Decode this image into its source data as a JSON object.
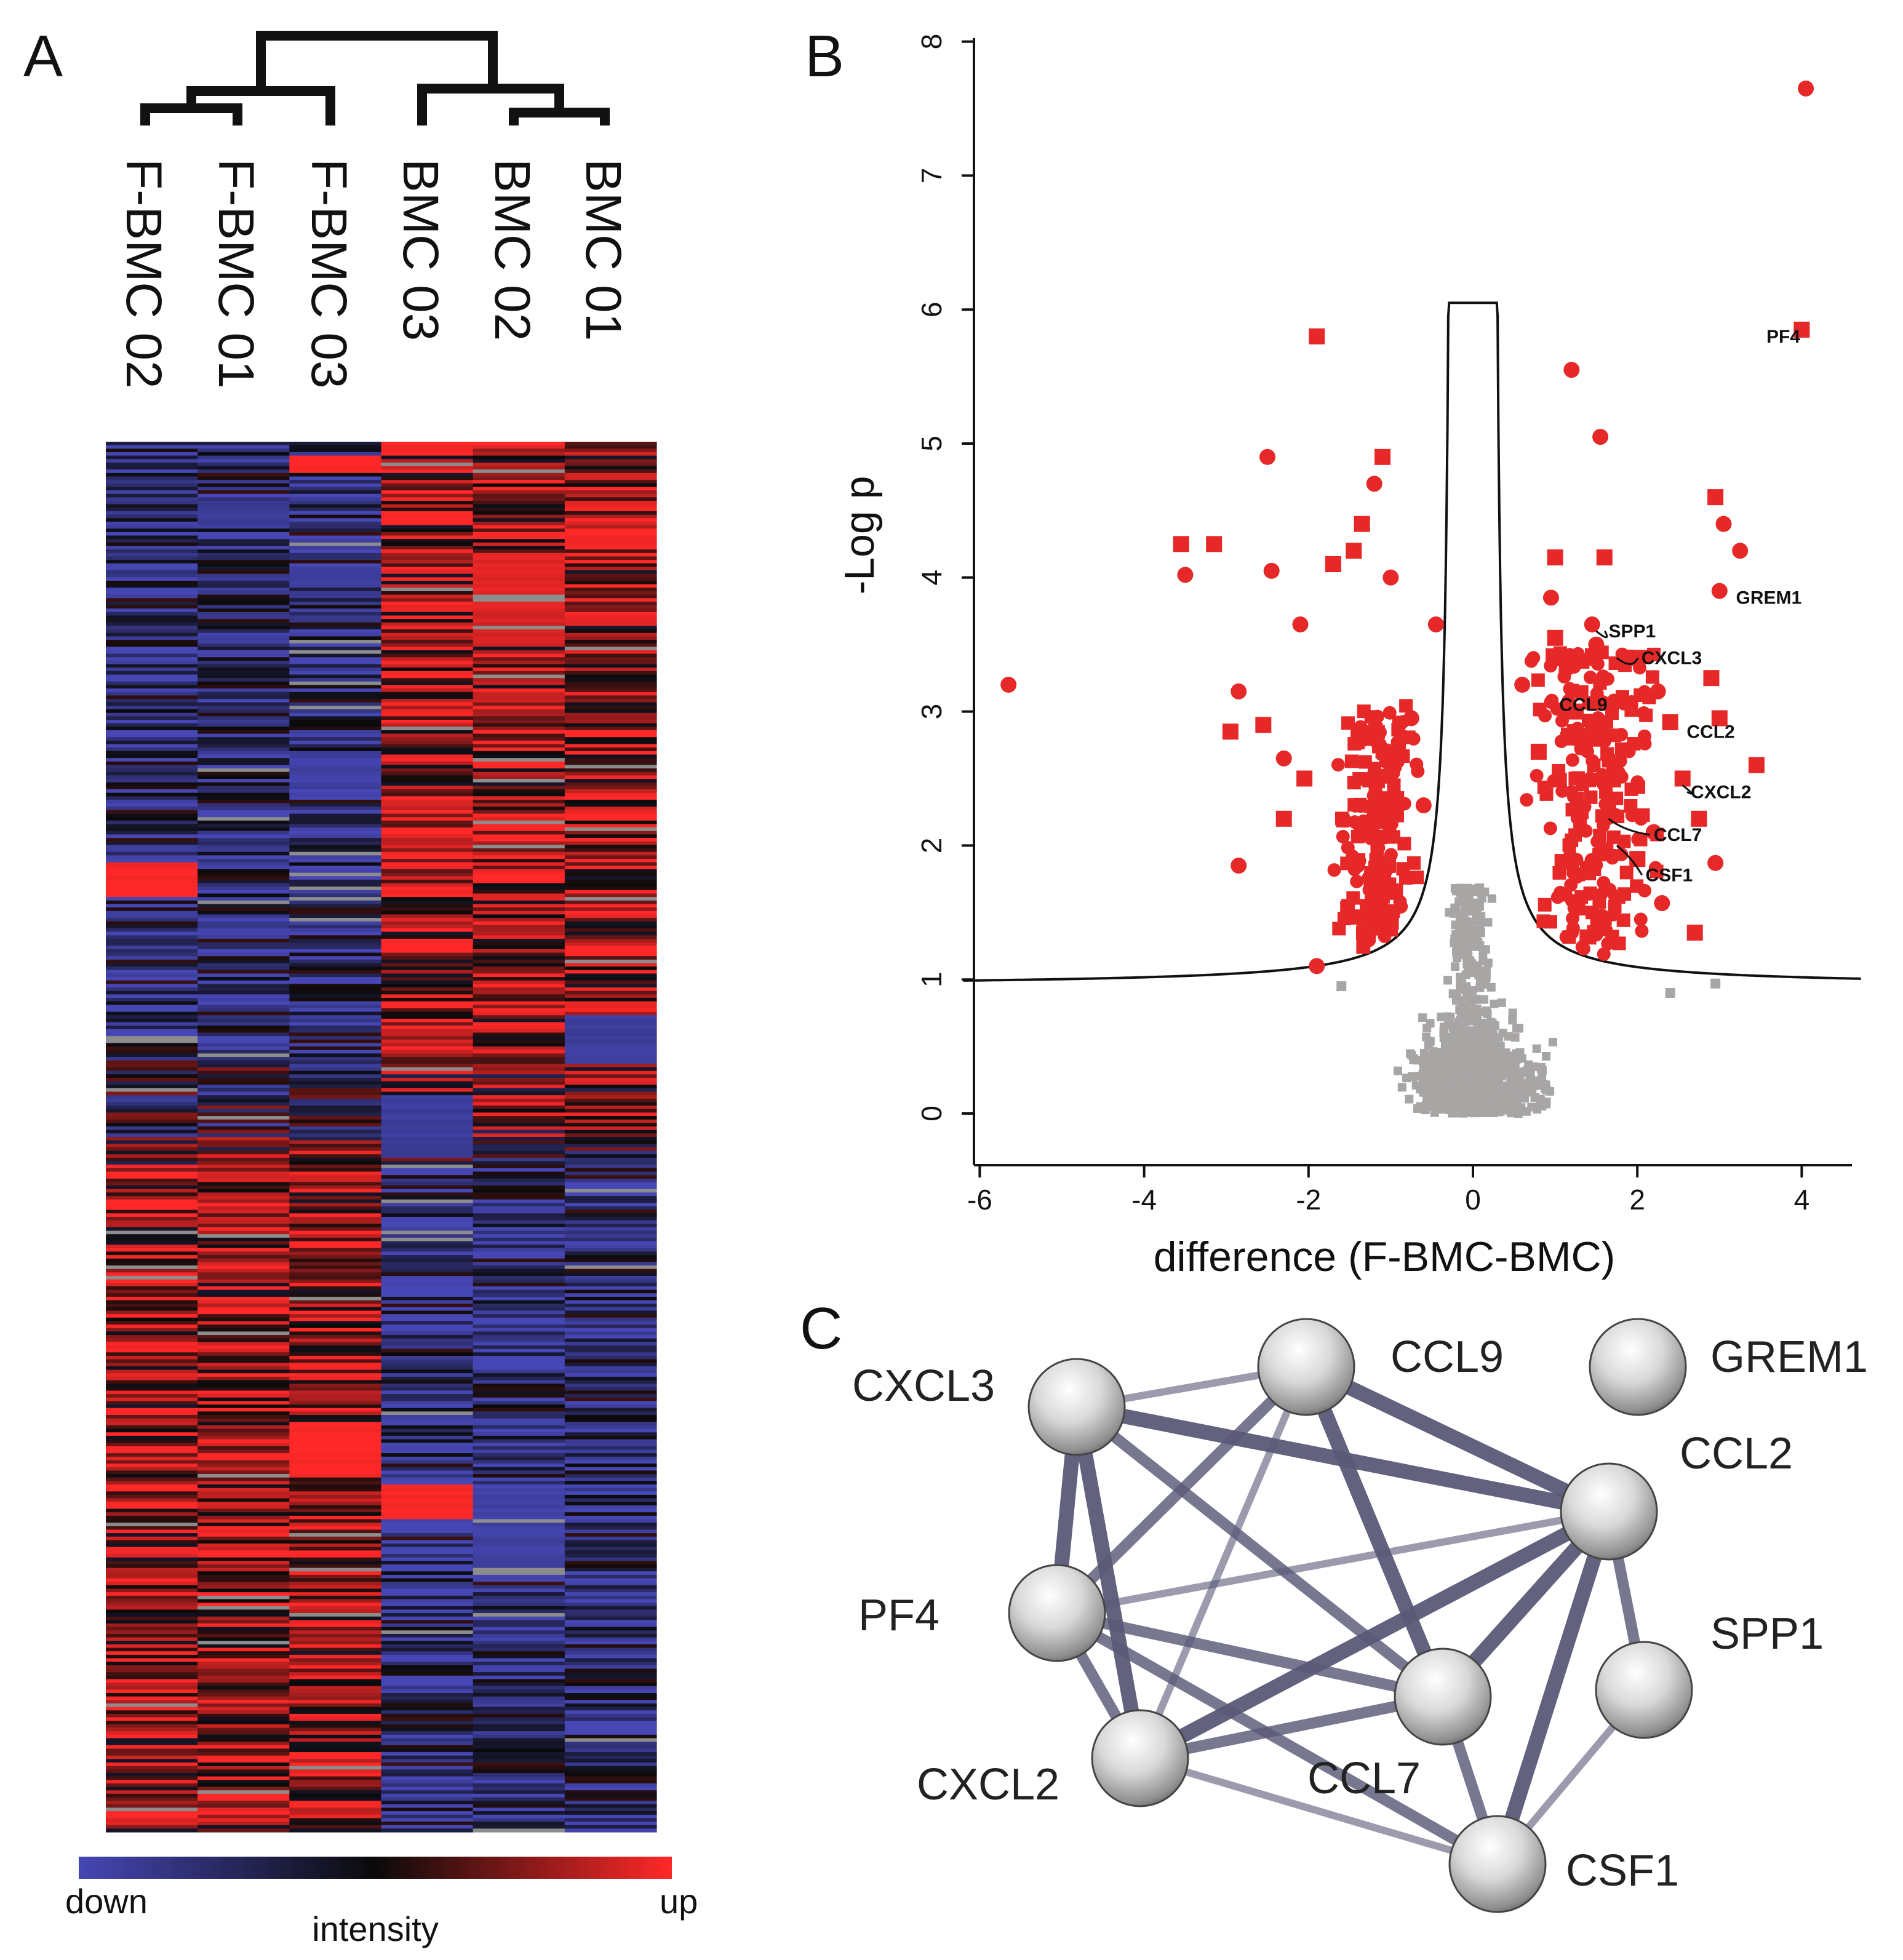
{
  "colors": {
    "down": "#4646b4",
    "mid": "#0a0a0a",
    "up": "#ff2828",
    "significant": "#e62828",
    "nonsignificant": "#a8a5a5",
    "edge": "#5a5a78",
    "node": "#cfcfcf"
  },
  "panels": {
    "a_label": "A",
    "b_label": "B",
    "c_label": "C"
  },
  "heatmap": {
    "samples": [
      "F-BMC 02",
      "F-BMC 01",
      "F-BMC 03",
      "BMC 03",
      "BMC 02",
      "BMC 01"
    ],
    "dendrogram": "F-BMC 02 and F-BMC 01 join first, then F-BMC 03; BMC 02 and BMC 01 join first, then BMC 03; the two groups join at the top",
    "colorbar": {
      "low_label": "down",
      "mid_label": "intensity",
      "high_label": "up"
    }
  },
  "chart_data": [
    {
      "type": "heatmap",
      "title": "",
      "columns": [
        "F-BMC 02",
        "F-BMC 01",
        "F-BMC 03",
        "BMC 03",
        "BMC 02",
        "BMC 01"
      ],
      "row_count": 400,
      "value_range": [
        -1,
        1
      ],
      "pattern": "upper half: F-BMC samples mostly down (blue), BMC samples mostly up (red); lower half: F-BMC samples mostly up (red), BMC samples mostly down (blue)",
      "colorbar": [
        "down",
        "intensity",
        "up"
      ]
    },
    {
      "type": "scatter",
      "title": "",
      "xlabel": "difference (F-BMC-BMC)",
      "ylabel": "-Log p",
      "xlim": [
        -6.2,
        4.7
      ],
      "ylim": [
        -0.4,
        8.1
      ],
      "xticks": [
        -6,
        -4,
        -2,
        0,
        2,
        4
      ],
      "xtick_labels": [
        "-6",
        "-4",
        "-2",
        "0",
        "2",
        "4"
      ],
      "yticks": [
        0,
        1,
        2,
        3,
        4,
        5,
        6,
        7,
        8
      ],
      "ytick_labels": [
        "0",
        "1",
        "2",
        "3",
        "4",
        "5",
        "6",
        "7",
        "8"
      ],
      "significant_points": [
        {
          "x": 4.05,
          "y": 7.65
        },
        {
          "x": 4.0,
          "y": 5.85
        },
        {
          "x": 3.0,
          "y": 3.9
        },
        {
          "x": 1.2,
          "y": 5.55
        },
        {
          "x": 1.55,
          "y": 5.05
        },
        {
          "x": 2.95,
          "y": 4.6
        },
        {
          "x": 3.05,
          "y": 4.4
        },
        {
          "x": 3.25,
          "y": 4.2
        },
        {
          "x": 1.6,
          "y": 4.15
        },
        {
          "x": 1.0,
          "y": 4.15
        },
        {
          "x": 0.95,
          "y": 3.85
        },
        {
          "x": 1.45,
          "y": 3.65
        },
        {
          "x": 1.5,
          "y": 3.5
        },
        {
          "x": 2.0,
          "y": 3.4
        },
        {
          "x": 2.9,
          "y": 3.25
        },
        {
          "x": 2.25,
          "y": 3.15
        },
        {
          "x": 1.25,
          "y": 3.0
        },
        {
          "x": 2.4,
          "y": 2.92
        },
        {
          "x": 3.0,
          "y": 2.95
        },
        {
          "x": 3.45,
          "y": 2.6
        },
        {
          "x": 2.55,
          "y": 2.5
        },
        {
          "x": 2.75,
          "y": 2.2
        },
        {
          "x": 2.2,
          "y": 2.1
        },
        {
          "x": 2.0,
          "y": 1.9
        },
        {
          "x": 2.95,
          "y": 1.87
        },
        {
          "x": 1.4,
          "y": 1.8
        },
        {
          "x": 2.3,
          "y": 1.57
        },
        {
          "x": 2.7,
          "y": 1.35
        },
        {
          "x": -5.65,
          "y": 3.2
        },
        {
          "x": -3.55,
          "y": 4.25
        },
        {
          "x": -3.5,
          "y": 4.02
        },
        {
          "x": -3.15,
          "y": 4.25
        },
        {
          "x": -2.5,
          "y": 4.9
        },
        {
          "x": -2.45,
          "y": 4.05
        },
        {
          "x": -1.9,
          "y": 5.8
        },
        {
          "x": -1.1,
          "y": 4.9
        },
        {
          "x": -1.2,
          "y": 4.7
        },
        {
          "x": -1.35,
          "y": 4.4
        },
        {
          "x": -1.45,
          "y": 4.2
        },
        {
          "x": -1.0,
          "y": 4.0
        },
        {
          "x": -2.1,
          "y": 3.65
        },
        {
          "x": -1.7,
          "y": 4.1
        },
        {
          "x": -0.45,
          "y": 3.65
        },
        {
          "x": -2.85,
          "y": 3.15
        },
        {
          "x": -2.95,
          "y": 2.85
        },
        {
          "x": -2.55,
          "y": 2.9
        },
        {
          "x": -2.3,
          "y": 2.65
        },
        {
          "x": -2.05,
          "y": 2.5
        },
        {
          "x": -2.3,
          "y": 2.2
        },
        {
          "x": -2.85,
          "y": 1.85
        },
        {
          "x": -1.9,
          "y": 1.1
        },
        {
          "x": -0.75,
          "y": 2.95
        },
        {
          "x": 1.0,
          "y": 3.55
        },
        {
          "x": 0.6,
          "y": 3.2
        },
        {
          "x": 0.8,
          "y": 2.7
        },
        {
          "x": -0.6,
          "y": 2.3
        }
      ],
      "significant_density": "dense red clusters in x ≈ -1.8…-0.4 and x ≈ 0.6…2.5, y ≈ 1.1…3.5",
      "nonsignificant_region": "grey points near x ≈ -1.2…2.9, y ≈ 0…1.7",
      "threshold_curve": "symmetric volcano significance curve: asymptote y ≈ 0.95 on both sides, spike to y ≈ 6.05 at x ≈ 0",
      "labeled_points": [
        {
          "label": "PF4",
          "x": 4.0,
          "y": 5.85
        },
        {
          "label": "GREM1",
          "x": 3.0,
          "y": 3.9
        },
        {
          "label": "SPP1",
          "x": 1.5,
          "y": 3.6
        },
        {
          "label": "CXCL3",
          "x": 1.75,
          "y": 3.4
        },
        {
          "label": "CCL9",
          "x": 1.3,
          "y": 3.1
        },
        {
          "label": "CCL2",
          "x": 2.45,
          "y": 2.9
        },
        {
          "label": "CXCL2",
          "x": 2.55,
          "y": 2.45
        },
        {
          "label": "CCL7",
          "x": 1.65,
          "y": 2.2
        },
        {
          "label": "CSF1",
          "x": 1.75,
          "y": 2.0
        }
      ]
    }
  ],
  "network": {
    "nodes": [
      "CXCL3",
      "CCL9",
      "GREM1",
      "CCL2",
      "PF4",
      "SPP1",
      "CCL7",
      "CXCL2",
      "CSF1"
    ],
    "edges": [
      {
        "a": "CXCL3",
        "b": "CCL9",
        "w": "weak"
      },
      {
        "a": "CXCL3",
        "b": "CCL2",
        "w": "strong"
      },
      {
        "a": "CXCL3",
        "b": "PF4",
        "w": "strong"
      },
      {
        "a": "CXCL3",
        "b": "CXCL2",
        "w": "strong"
      },
      {
        "a": "CXCL3",
        "b": "CCL7",
        "w": "medium"
      },
      {
        "a": "CCL9",
        "b": "CCL2",
        "w": "strong"
      },
      {
        "a": "CCL9",
        "b": "PF4",
        "w": "medium"
      },
      {
        "a": "CCL9",
        "b": "CXCL2",
        "w": "weak"
      },
      {
        "a": "CCL9",
        "b": "CCL7",
        "w": "strong"
      },
      {
        "a": "CCL2",
        "b": "PF4",
        "w": "weak"
      },
      {
        "a": "CCL2",
        "b": "CXCL2",
        "w": "strong"
      },
      {
        "a": "CCL2",
        "b": "CCL7",
        "w": "strong"
      },
      {
        "a": "CCL2",
        "b": "SPP1",
        "w": "medium"
      },
      {
        "a": "CCL2",
        "b": "CSF1",
        "w": "strong"
      },
      {
        "a": "PF4",
        "b": "CXCL2",
        "w": "medium"
      },
      {
        "a": "PF4",
        "b": "CCL7",
        "w": "medium"
      },
      {
        "a": "PF4",
        "b": "CSF1",
        "w": "medium"
      },
      {
        "a": "CXCL2",
        "b": "CCL7",
        "w": "medium"
      },
      {
        "a": "CXCL2",
        "b": "CSF1",
        "w": "weak"
      },
      {
        "a": "CCL7",
        "b": "CSF1",
        "w": "medium"
      },
      {
        "a": "SPP1",
        "b": "CSF1",
        "w": "weak"
      }
    ]
  }
}
